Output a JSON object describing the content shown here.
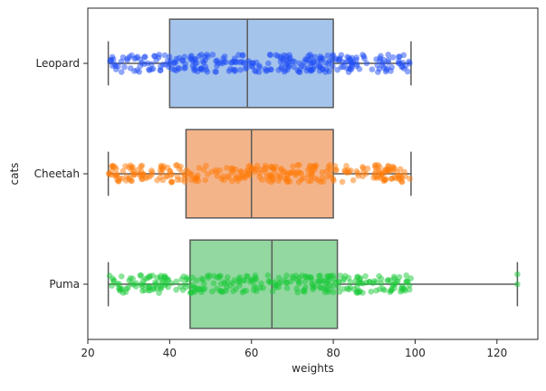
{
  "chart_data": {
    "type": "boxplot",
    "title": "",
    "xlabel": "weights",
    "ylabel": "cats",
    "xlim": [
      20,
      130
    ],
    "xticks": [
      20,
      40,
      60,
      80,
      100,
      120
    ],
    "grid": false,
    "orientation": "horizontal",
    "categories": [
      "Leopard",
      "Cheetah",
      "Puma"
    ],
    "series": [
      {
        "category": "Leopard",
        "whisker_low": 25,
        "q1": 40,
        "median": 59,
        "q3": 80,
        "whisker_high": 99,
        "outliers": [],
        "box_color": "#a5c4ec",
        "point_color": "#1f4ef5",
        "n_points": 300
      },
      {
        "category": "Cheetah",
        "whisker_low": 25,
        "q1": 44,
        "median": 60,
        "q3": 80,
        "whisker_high": 99,
        "outliers": [],
        "box_color": "#f4b48a",
        "point_color": "#ff7c0a",
        "n_points": 300
      },
      {
        "category": "Puma",
        "whisker_low": 25,
        "q1": 45,
        "median": 65,
        "q3": 81,
        "whisker_high": 125,
        "outliers": [],
        "box_color": "#92d8a0",
        "point_color": "#1ac938",
        "n_points": 300
      }
    ]
  }
}
